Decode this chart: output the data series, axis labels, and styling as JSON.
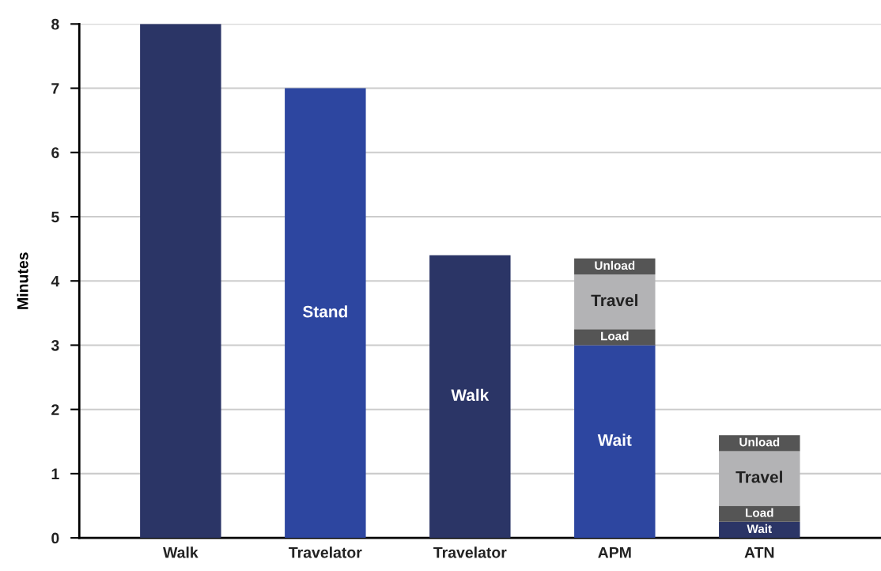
{
  "chart_data": {
    "type": "bar",
    "stacked": true,
    "ylabel": "Minutes",
    "categories": [
      "Walk",
      "Travelator",
      "Travelator",
      "APM",
      "ATN"
    ],
    "series": [
      {
        "values": [
          8,
          7,
          4.4,
          3,
          0.25
        ],
        "colors": [
          "#2b3566",
          "#2d46a0",
          "#2b3566",
          "#2d46a0",
          "#2b3566"
        ],
        "value_labels": [
          null,
          "Stand",
          "Walk",
          "Wait",
          "Wait"
        ]
      },
      {
        "color": "#555555",
        "values": [
          null,
          null,
          null,
          0.25,
          0.25
        ],
        "value_labels": [
          null,
          null,
          null,
          "Load",
          "Load"
        ]
      },
      {
        "color": "#b3b3b5",
        "values": [
          null,
          null,
          null,
          0.85,
          0.85
        ],
        "value_labels": [
          null,
          null,
          null,
          "Travel",
          "Travel"
        ]
      },
      {
        "color": "#555555",
        "values": [
          null,
          null,
          null,
          0.25,
          0.25
        ],
        "value_labels": [
          null,
          null,
          null,
          "Unload",
          "Unload"
        ]
      }
    ],
    "ylim": [
      0,
      8
    ],
    "yticks": [
      0,
      1,
      2,
      3,
      4,
      5,
      6,
      7,
      8
    ],
    "grid": "y",
    "legend": false
  }
}
